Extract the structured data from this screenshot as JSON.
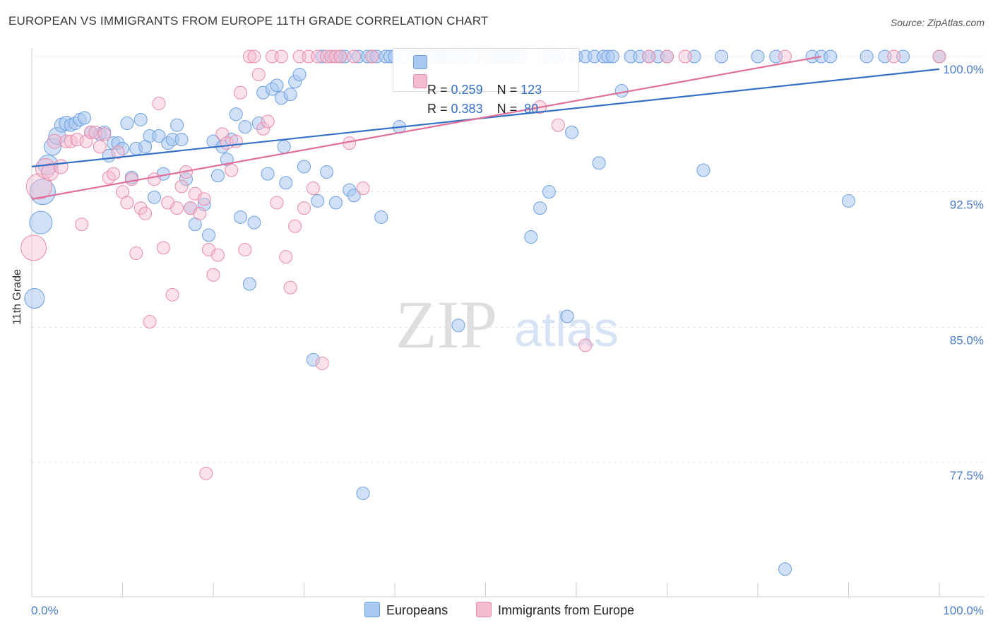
{
  "title": "EUROPEAN VS IMMIGRANTS FROM EUROPE 11TH GRADE CORRELATION CHART",
  "source": "Source: ZipAtlas.com",
  "watermark": {
    "zip": "ZIP",
    "atlas": "atlas"
  },
  "colors": {
    "blue_fill": "#a9c8f0",
    "blue_stroke": "#6c9fe0",
    "blue_line": "#3470c6",
    "pink_fill": "#f5bcd0",
    "pink_stroke": "#e98aa9",
    "pink_line": "#e0709a",
    "tick_label": "#4a7cc9",
    "grid": "#e4e4e4"
  },
  "legend": {
    "rows": [
      {
        "r_label": "R = ",
        "r_value": "0.259",
        "n_label": "N = ",
        "n_value": "123"
      },
      {
        "r_label": "R = ",
        "r_value": "0.383",
        "n_label": "N = ",
        "n_value": " 80"
      }
    ]
  },
  "bottom_legend": {
    "europeans": "Europeans",
    "immigrants": "Immigrants from Europe"
  },
  "chart_data": {
    "type": "scatter",
    "title": "EUROPEAN VS IMMIGRANTS FROM EUROPE 11TH GRADE CORRELATION CHART",
    "xlabel": "",
    "ylabel": "11th Grade",
    "xlim": [
      0,
      100
    ],
    "ylim": [
      72.0,
      101.5
    ],
    "x_tick_labels": [
      "0.0%",
      "100.0%"
    ],
    "y_ticks": [
      77.5,
      85.0,
      92.5,
      100.0
    ],
    "y_tick_labels": [
      "77.5%",
      "85.0%",
      "92.5%",
      "100.0%"
    ],
    "grid": true,
    "legend_position": "top-center",
    "series": [
      {
        "name": "Europeans",
        "r": 0.259,
        "n": 123,
        "trend": [
          [
            0,
            93.9
          ],
          [
            100,
            99.3
          ]
        ],
        "points": [
          [
            0.3,
            86.6,
            14
          ],
          [
            1.0,
            90.8,
            16
          ],
          [
            1.2,
            92.5,
            18
          ],
          [
            1.8,
            94.0,
            14
          ],
          [
            2.3,
            95.0,
            12
          ],
          [
            2.8,
            95.6,
            12
          ],
          [
            3.3,
            96.2,
            10
          ],
          [
            3.8,
            96.3,
            10
          ],
          [
            4.3,
            96.2,
            9
          ],
          [
            4.8,
            96.3,
            9
          ],
          [
            5.3,
            96.5,
            9
          ],
          [
            5.8,
            96.6,
            9
          ],
          [
            6.5,
            95.8,
            9
          ],
          [
            7.5,
            95.7,
            9
          ],
          [
            8.0,
            95.8,
            9
          ],
          [
            8.5,
            94.5,
            9
          ],
          [
            9.0,
            95.2,
            9
          ],
          [
            9.5,
            95.2,
            9
          ],
          [
            10.0,
            94.9,
            9
          ],
          [
            10.5,
            96.3,
            9
          ],
          [
            11.0,
            93.3,
            9
          ],
          [
            11.5,
            94.9,
            9
          ],
          [
            12.0,
            96.5,
            9
          ],
          [
            12.5,
            95.0,
            9
          ],
          [
            13.0,
            95.6,
            9
          ],
          [
            13.5,
            92.2,
            9
          ],
          [
            14.0,
            95.6,
            9
          ],
          [
            14.5,
            93.5,
            9
          ],
          [
            15.0,
            95.2,
            9
          ],
          [
            15.5,
            95.4,
            9
          ],
          [
            16.0,
            96.2,
            9
          ],
          [
            16.5,
            95.4,
            9
          ],
          [
            17.0,
            93.2,
            9
          ],
          [
            17.5,
            91.6,
            9
          ],
          [
            18.0,
            90.7,
            9
          ],
          [
            19.0,
            91.8,
            9
          ],
          [
            19.5,
            90.1,
            9
          ],
          [
            20.0,
            95.3,
            9
          ],
          [
            20.5,
            93.4,
            9
          ],
          [
            21.0,
            95.0,
            9
          ],
          [
            21.5,
            94.3,
            9
          ],
          [
            22.0,
            95.4,
            9
          ],
          [
            22.5,
            96.8,
            9
          ],
          [
            23.0,
            91.1,
            9
          ],
          [
            23.5,
            96.1,
            9
          ],
          [
            24.0,
            87.4,
            9
          ],
          [
            24.5,
            90.8,
            9
          ],
          [
            25.0,
            96.3,
            9
          ],
          [
            25.5,
            98.0,
            9
          ],
          [
            26.0,
            93.5,
            9
          ],
          [
            26.5,
            98.2,
            9
          ],
          [
            27.0,
            98.4,
            9
          ],
          [
            27.5,
            97.7,
            9
          ],
          [
            27.8,
            95.0,
            9
          ],
          [
            28.0,
            93.0,
            9
          ],
          [
            28.5,
            97.9,
            9
          ],
          [
            29.0,
            98.6,
            9
          ],
          [
            29.5,
            99.0,
            9
          ],
          [
            30.0,
            93.9,
            9
          ],
          [
            31.0,
            83.2,
            9
          ],
          [
            31.5,
            92.0,
            9
          ],
          [
            32.0,
            100.0,
            9
          ],
          [
            32.5,
            93.6,
            9
          ],
          [
            33.0,
            100.0,
            9
          ],
          [
            33.5,
            91.9,
            9
          ],
          [
            34.0,
            100.0,
            9
          ],
          [
            34.5,
            100.0,
            9
          ],
          [
            35.0,
            92.6,
            9
          ],
          [
            35.5,
            92.3,
            9
          ],
          [
            36.0,
            100.0,
            9
          ],
          [
            36.5,
            75.8,
            9
          ],
          [
            37.0,
            100.0,
            9
          ],
          [
            37.5,
            100.0,
            9
          ],
          [
            38.0,
            100.0,
            9
          ],
          [
            38.5,
            91.1,
            9
          ],
          [
            39.0,
            100.0,
            9
          ],
          [
            39.5,
            100.0,
            9
          ],
          [
            40.0,
            100.0,
            9
          ],
          [
            40.5,
            96.1,
            9
          ],
          [
            41.0,
            100.0,
            9
          ],
          [
            42.0,
            100.0,
            9
          ],
          [
            42.5,
            100.0,
            9
          ],
          [
            43.0,
            100.0,
            9
          ],
          [
            44.0,
            100.0,
            9
          ],
          [
            44.5,
            100.0,
            9
          ],
          [
            45.0,
            100.0,
            9
          ],
          [
            45.5,
            100.0,
            9
          ],
          [
            46.0,
            100.0,
            9
          ],
          [
            46.5,
            100.0,
            9
          ],
          [
            47.0,
            85.1,
            9
          ],
          [
            47.5,
            100.0,
            9
          ],
          [
            48.0,
            100.0,
            9
          ],
          [
            49.0,
            100.0,
            9
          ],
          [
            50.0,
            100.0,
            9
          ],
          [
            50.5,
            100.0,
            9
          ],
          [
            51.0,
            100.0,
            9
          ],
          [
            51.5,
            100.0,
            9
          ],
          [
            52.0,
            100.0,
            9
          ],
          [
            52.5,
            100.0,
            9
          ],
          [
            53.0,
            100.0,
            9
          ],
          [
            53.5,
            100.0,
            9
          ],
          [
            54.0,
            100.0,
            9
          ],
          [
            55.0,
            90.0,
            9
          ],
          [
            56.0,
            91.6,
            9
          ],
          [
            56.5,
            100.0,
            9
          ],
          [
            57.0,
            92.5,
            9
          ],
          [
            57.5,
            100.0,
            9
          ],
          [
            58.0,
            100.0,
            9
          ],
          [
            59.0,
            85.6,
            9
          ],
          [
            59.5,
            95.8,
            9
          ],
          [
            60.0,
            100.0,
            9
          ],
          [
            61.0,
            100.0,
            9
          ],
          [
            62.0,
            100.0,
            9
          ],
          [
            62.5,
            94.1,
            9
          ],
          [
            63.0,
            100.0,
            9
          ],
          [
            63.5,
            100.0,
            9
          ],
          [
            64.0,
            100.0,
            9
          ],
          [
            65.0,
            98.1,
            9
          ],
          [
            66.0,
            100.0,
            9
          ],
          [
            67.0,
            100.0,
            9
          ],
          [
            68.0,
            100.0,
            9
          ],
          [
            69.0,
            100.0,
            9
          ],
          [
            70.0,
            100.0,
            9
          ],
          [
            73.0,
            100.0,
            9
          ],
          [
            74.0,
            93.7,
            9
          ],
          [
            76.0,
            100.0,
            9
          ],
          [
            80.0,
            100.0,
            9
          ],
          [
            82.0,
            100.0,
            9
          ],
          [
            83.0,
            71.6,
            9
          ],
          [
            86.0,
            100.0,
            9
          ],
          [
            87.0,
            100.0,
            9
          ],
          [
            88.0,
            100.0,
            9
          ],
          [
            90.0,
            92.0,
            9
          ],
          [
            92.0,
            100.0,
            9
          ],
          [
            94.0,
            100.0,
            9
          ],
          [
            96.0,
            100.0,
            9
          ],
          [
            100.0,
            100.0,
            9
          ]
        ]
      },
      {
        "name": "Immigrants from Europe",
        "r": 0.383,
        "n": 80,
        "trend": [
          [
            0,
            92.1
          ],
          [
            87,
            100.0
          ]
        ],
        "points": [
          [
            0.2,
            89.4,
            18
          ],
          [
            0.8,
            92.8,
            18
          ],
          [
            1.5,
            93.8,
            14
          ],
          [
            2.0,
            93.6,
            12
          ],
          [
            2.5,
            95.3,
            10
          ],
          [
            3.2,
            93.9,
            10
          ],
          [
            3.8,
            95.3,
            9
          ],
          [
            4.3,
            95.3,
            9
          ],
          [
            5.0,
            95.4,
            9
          ],
          [
            5.5,
            90.7,
            9
          ],
          [
            6.0,
            95.3,
            9
          ],
          [
            6.5,
            95.8,
            9
          ],
          [
            7.0,
            95.8,
            9
          ],
          [
            7.5,
            95.0,
            9
          ],
          [
            8.0,
            95.7,
            9
          ],
          [
            8.5,
            93.3,
            9
          ],
          [
            9.0,
            93.5,
            9
          ],
          [
            9.5,
            94.7,
            9
          ],
          [
            10.0,
            92.5,
            9
          ],
          [
            10.5,
            91.9,
            9
          ],
          [
            11.0,
            93.2,
            9
          ],
          [
            11.5,
            89.1,
            9
          ],
          [
            12.0,
            91.6,
            9
          ],
          [
            12.5,
            91.3,
            9
          ],
          [
            13.0,
            85.3,
            9
          ],
          [
            13.5,
            93.2,
            9
          ],
          [
            14.0,
            97.4,
            9
          ],
          [
            14.5,
            89.4,
            9
          ],
          [
            15.0,
            91.9,
            9
          ],
          [
            15.5,
            86.8,
            9
          ],
          [
            16.0,
            91.6,
            9
          ],
          [
            16.5,
            92.8,
            9
          ],
          [
            17.0,
            93.6,
            9
          ],
          [
            17.5,
            91.6,
            9
          ],
          [
            18.0,
            92.4,
            9
          ],
          [
            18.5,
            91.3,
            9
          ],
          [
            19.0,
            92.1,
            9
          ],
          [
            19.5,
            89.3,
            9
          ],
          [
            20.0,
            87.9,
            9
          ],
          [
            20.5,
            89.0,
            9
          ],
          [
            21.0,
            95.7,
            9
          ],
          [
            21.5,
            95.2,
            9
          ],
          [
            22.0,
            93.7,
            9
          ],
          [
            22.5,
            95.3,
            9
          ],
          [
            23.0,
            98.0,
            9
          ],
          [
            23.5,
            89.3,
            9
          ],
          [
            24.0,
            100.0,
            9
          ],
          [
            24.5,
            100.0,
            9
          ],
          [
            25.0,
            99.0,
            9
          ],
          [
            25.5,
            96.0,
            9
          ],
          [
            26.0,
            96.4,
            9
          ],
          [
            26.5,
            100.0,
            9
          ],
          [
            27.0,
            91.9,
            9
          ],
          [
            27.5,
            100.0,
            9
          ],
          [
            28.0,
            88.9,
            9
          ],
          [
            28.5,
            87.2,
            9
          ],
          [
            29.0,
            90.6,
            9
          ],
          [
            29.5,
            100.0,
            9
          ],
          [
            30.0,
            91.6,
            9
          ],
          [
            30.5,
            100.0,
            9
          ],
          [
            31.0,
            92.7,
            9
          ],
          [
            31.5,
            100.0,
            9
          ],
          [
            32.0,
            83.0,
            9
          ],
          [
            32.5,
            100.0,
            9
          ],
          [
            33.0,
            100.0,
            9
          ],
          [
            33.5,
            100.0,
            9
          ],
          [
            34.0,
            100.0,
            9
          ],
          [
            35.0,
            95.2,
            9
          ],
          [
            35.5,
            100.0,
            9
          ],
          [
            36.5,
            92.7,
            9
          ],
          [
            37.5,
            100.0,
            9
          ],
          [
            50.0,
            100.0,
            9
          ],
          [
            56.0,
            97.2,
            9
          ],
          [
            58.0,
            96.2,
            9
          ],
          [
            61.0,
            84.0,
            9
          ],
          [
            68.0,
            100.0,
            9
          ],
          [
            70.0,
            100.0,
            9
          ],
          [
            72.0,
            100.0,
            9
          ],
          [
            83.0,
            100.0,
            9
          ],
          [
            95.0,
            100.0,
            9
          ],
          [
            100.0,
            100.0,
            9
          ],
          [
            19.2,
            76.9,
            9
          ]
        ]
      }
    ]
  }
}
